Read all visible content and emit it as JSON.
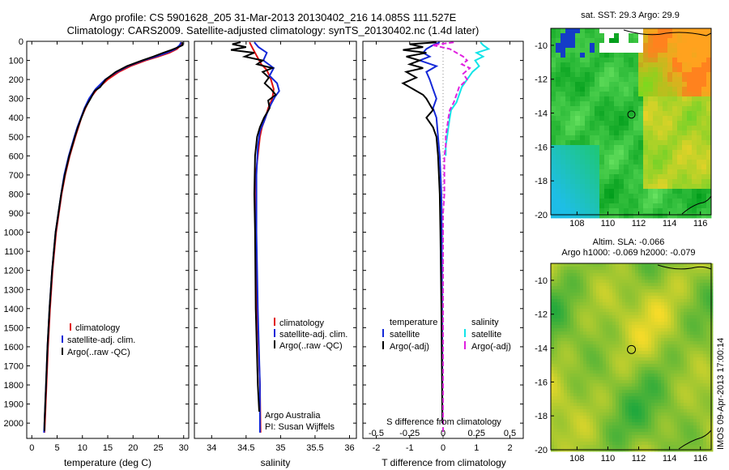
{
  "title": {
    "line1": "Argo profile: CS 5901628_205 31-Mar-2013 20130402_216 14.085S 111.527E",
    "line2": "Climatology: CARS2009. Satellite-adjusted climatology: synTS_20130402.nc (1.4d later)"
  },
  "watermark": "IMOS 09-Apr-2013 17:00:14",
  "colors": {
    "climatology": "#e01010",
    "satellite": "#1428d8",
    "argo": "#000000",
    "salinity_satellite": "#12e4e8",
    "salinity_argo": "#e020e0",
    "frame": "#000000"
  },
  "chart_data": [
    {
      "type": "line",
      "id": "temperature",
      "xlabel": "temperature (deg C)",
      "ylabel": "",
      "xlim": [
        -1,
        31
      ],
      "ylim": [
        2080,
        0
      ],
      "xticks": [
        0,
        5,
        10,
        15,
        20,
        25,
        30
      ],
      "yticks": [
        0,
        100,
        200,
        300,
        400,
        500,
        600,
        700,
        800,
        900,
        1000,
        1100,
        1200,
        1300,
        1400,
        1500,
        1600,
        1700,
        1800,
        1900,
        2000
      ],
      "legend": {
        "placement": "lower-center",
        "entries": [
          "climatology",
          "satellite-adj. clim.",
          "Argo(..raw -QC)"
        ]
      },
      "series": [
        {
          "name": "climatology",
          "color_key": "climatology",
          "depth": [
            5,
            20,
            40,
            60,
            80,
            100,
            130,
            160,
            200,
            250,
            300,
            350,
            400,
            450,
            500,
            600,
            700,
            800,
            1000,
            1200,
            1400,
            1600,
            1800,
            2000,
            2050
          ],
          "values": [
            29.6,
            29.4,
            28.7,
            27.2,
            25.0,
            22.5,
            19.5,
            17.2,
            15.0,
            12.9,
            11.5,
            10.6,
            9.8,
            9.2,
            8.6,
            7.5,
            6.6,
            5.9,
            4.8,
            4.1,
            3.6,
            3.2,
            2.9,
            2.6,
            2.5
          ]
        },
        {
          "name": "satellite-adj. clim.",
          "color_key": "satellite",
          "depth": [
            5,
            20,
            40,
            60,
            80,
            100,
            130,
            160,
            200,
            250,
            300,
            350,
            400,
            450,
            500,
            600,
            700,
            800,
            1000,
            1200,
            1400,
            1600,
            1800,
            2000,
            2050
          ],
          "values": [
            29.5,
            29.2,
            28.4,
            26.7,
            24.5,
            22.0,
            19.0,
            16.8,
            14.5,
            12.6,
            11.3,
            10.4,
            9.7,
            9.0,
            8.4,
            7.3,
            6.4,
            5.8,
            4.7,
            4.0,
            3.5,
            3.1,
            2.8,
            2.5,
            2.4
          ]
        },
        {
          "name": "Argo(..raw -QC)",
          "color_key": "argo",
          "depth": [
            5,
            20,
            30,
            45,
            60,
            80,
            100,
            130,
            160,
            200,
            240,
            260,
            300,
            350,
            400,
            450,
            500,
            600,
            700,
            800,
            1000,
            1200,
            1400,
            1600,
            1800,
            2000,
            2040
          ],
          "values": [
            29.7,
            29.8,
            29.0,
            27.6,
            26.0,
            24.0,
            21.8,
            18.8,
            16.6,
            14.6,
            13.5,
            12.4,
            11.6,
            10.5,
            9.8,
            9.1,
            8.5,
            7.4,
            6.5,
            5.8,
            4.7,
            4.0,
            3.5,
            3.1,
            2.8,
            2.5,
            2.5
          ]
        }
      ]
    },
    {
      "type": "line",
      "id": "salinity",
      "xlabel": "salinity",
      "xlim": [
        33.75,
        36.1
      ],
      "ylim": [
        2080,
        0
      ],
      "xticks": [
        34,
        34.5,
        35,
        35.5,
        36
      ],
      "xticklabels": [
        "34",
        "34.5",
        "35",
        "35.5",
        "36"
      ],
      "legend": {
        "placement": "lower-right",
        "entries": [
          "climatology",
          "satellite-adj. clim.",
          "Argo(..raw -QC)"
        ]
      },
      "annotation": [
        "Argo Australia",
        "PI: Susan Wijffels"
      ],
      "series": [
        {
          "name": "climatology",
          "color_key": "climatology",
          "depth": [
            5,
            40,
            80,
            120,
            150,
            200,
            250,
            300,
            350,
            400,
            450,
            500,
            700,
            1000,
            1400,
            1800,
            2050
          ],
          "values": [
            34.55,
            34.6,
            34.66,
            34.72,
            34.8,
            34.86,
            34.9,
            34.88,
            34.82,
            34.78,
            34.73,
            34.7,
            34.64,
            34.64,
            34.66,
            34.7,
            34.71
          ]
        },
        {
          "name": "satellite-adj. clim.",
          "color_key": "satellite",
          "depth": [
            5,
            30,
            60,
            100,
            140,
            180,
            220,
            260,
            290,
            330,
            380,
            420,
            470,
            550,
            700,
            1000,
            1400,
            1800,
            2050
          ],
          "values": [
            34.62,
            34.68,
            34.8,
            34.75,
            34.9,
            34.84,
            34.95,
            34.98,
            34.92,
            34.86,
            34.8,
            34.76,
            34.7,
            34.67,
            34.65,
            34.65,
            34.67,
            34.7,
            34.7
          ]
        },
        {
          "name": "Argo(..raw -QC)",
          "color_key": "argo",
          "depth": [
            5,
            15,
            30,
            45,
            60,
            80,
            100,
            120,
            140,
            160,
            190,
            220,
            250,
            280,
            310,
            350,
            400,
            450,
            500,
            600,
            800,
            1000,
            1400,
            1800,
            1940
          ],
          "values": [
            34.42,
            34.3,
            34.5,
            34.28,
            34.62,
            34.48,
            34.74,
            34.66,
            34.88,
            34.74,
            34.83,
            34.77,
            34.86,
            34.93,
            34.82,
            34.84,
            34.76,
            34.7,
            34.66,
            34.63,
            34.62,
            34.63,
            34.64,
            34.67,
            34.69
          ]
        }
      ]
    },
    {
      "type": "line",
      "id": "difference",
      "xlabel": "T difference from climatology",
      "xlabel_top": "S difference from climatology",
      "xlim": [
        -2.4,
        2.4
      ],
      "ylim": [
        2080,
        0
      ],
      "xticks": [
        -2,
        -1,
        0,
        1,
        2
      ],
      "salinity_ticklabels": [
        "-0.5",
        "-0.25",
        "0",
        "0.25",
        "0.5"
      ],
      "legend": {
        "placement": "upper-center",
        "temperature_header": "temperature",
        "salinity_header": "salinity",
        "entries": [
          "satellite",
          "Argo(-adj)",
          "satellite",
          "Argo(-adj)"
        ]
      },
      "series": [
        {
          "name": "temperature satellite",
          "color_key": "satellite",
          "depth": [
            5,
            20,
            40,
            60,
            80,
            100,
            130,
            160,
            200,
            250,
            300,
            350,
            400,
            500,
            600,
            800,
            1000,
            1400,
            2000
          ],
          "values": [
            -0.1,
            -0.3,
            -0.5,
            -0.6,
            -0.4,
            -0.7,
            -0.2,
            -0.5,
            -0.4,
            -0.3,
            -0.2,
            -0.3,
            -0.2,
            -0.15,
            -0.1,
            -0.05,
            -0.04,
            -0.03,
            -0.02
          ]
        },
        {
          "name": "temperature Argo(-adj)",
          "color_key": "argo",
          "depth": [
            5,
            15,
            30,
            45,
            60,
            80,
            100,
            120,
            140,
            160,
            190,
            220,
            250,
            280,
            300,
            330,
            360,
            400,
            450,
            500,
            600,
            800,
            1000,
            1400,
            2000
          ],
          "values": [
            -0.2,
            -1.0,
            -0.6,
            -1.2,
            -0.5,
            -1.1,
            -0.7,
            -1.0,
            -0.6,
            -1.1,
            -0.8,
            -1.2,
            -0.9,
            -0.6,
            -0.5,
            -0.4,
            -0.3,
            -0.5,
            -0.3,
            -0.2,
            -0.15,
            -0.1,
            -0.08,
            -0.05,
            -0.02
          ]
        },
        {
          "name": "salinity satellite",
          "color_key": "salinity_satellite",
          "depth": [
            5,
            20,
            40,
            60,
            80,
            100,
            130,
            160,
            200,
            240,
            280,
            320,
            360,
            400,
            450,
            500,
            550,
            600
          ],
          "values": [
            0.28,
            0.3,
            0.34,
            0.25,
            0.3,
            0.24,
            0.27,
            0.22,
            0.18,
            0.14,
            0.12,
            0.1,
            0.06,
            0.05,
            0.04,
            0.03,
            0.02,
            0.02
          ]
        },
        {
          "name": "salinity Argo(-adj)",
          "color_key": "salinity_argo",
          "depth": [
            5,
            20,
            40,
            60,
            80,
            100,
            120,
            140,
            170,
            200,
            240,
            280,
            320,
            360,
            400,
            450,
            500,
            550,
            600,
            700,
            800,
            900,
            1000,
            1200,
            1400,
            1600,
            1800,
            2000,
            2050
          ],
          "values": [
            0.08,
            -0.08,
            0.05,
            0.1,
            0.15,
            0.18,
            0.14,
            0.2,
            0.15,
            0.18,
            0.12,
            0.1,
            0.08,
            0.05,
            0.04,
            0.03,
            0.02,
            0.02,
            0.01,
            0.01,
            0.01,
            0.0,
            0.0,
            0.0,
            0.0,
            0.0,
            0.0,
            0.0,
            0.0
          ]
        }
      ]
    },
    {
      "type": "heatmap",
      "id": "sst_map",
      "title": "sat. SST: 29.3 Argo: 29.9",
      "xlim": [
        106.3,
        116.7
      ],
      "ylim": [
        -20,
        -9
      ],
      "xticks": [
        108,
        110,
        112,
        114,
        116
      ],
      "yticks": [
        -10,
        -12,
        -14,
        -16,
        -18,
        -20
      ],
      "marker": {
        "lon": 111.527,
        "lat": -14.085
      }
    },
    {
      "type": "heatmap",
      "id": "sla_map",
      "title_lines": [
        "Altim. SLA: -0.066",
        "Argo h1000: -0.069 h2000: -0.079"
      ],
      "xlim": [
        106.3,
        116.7
      ],
      "ylim": [
        -20,
        -9
      ],
      "xticks": [
        108,
        110,
        112,
        114,
        116
      ],
      "yticks": [
        -10,
        -12,
        -14,
        -16,
        -18,
        -20
      ],
      "marker": {
        "lon": 111.527,
        "lat": -14.085
      }
    }
  ]
}
